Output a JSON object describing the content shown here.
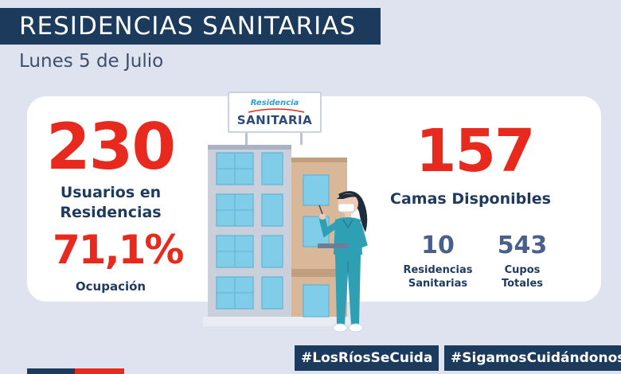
{
  "header": {
    "title": "RESIDENCIAS SANITARIAS",
    "date": "Lunes 5 de Julio"
  },
  "stats": {
    "usuarios_value": "230",
    "usuarios_label_line1": "Usuarios en",
    "usuarios_label_line2": "Residencias",
    "ocupacion_value": "71,1%",
    "ocupacion_label": "Ocupación",
    "camas_value": "157",
    "camas_label": "Camas Disponibles",
    "residencias_value": "10",
    "residencias_label_line1": "Residencias",
    "residencias_label_line2": "Sanitarias",
    "cupos_value": "543",
    "cupos_label_line1": "Cupos",
    "cupos_label_line2": "Totales"
  },
  "sign": {
    "top": "Residencia",
    "main": "SANITARIA"
  },
  "hashtags": {
    "left": "#LosRíosSeCuida",
    "right": "#SigamosCuidándonos"
  },
  "colors": {
    "navy": "#1c3a5c",
    "red": "#e8291d",
    "background": "#dfe3ef",
    "slate": "#4a5f8a",
    "building_window": "#7fcde8",
    "nurse_scrubs": "#2f9fb3"
  },
  "icons": [
    "building-illustration",
    "nurse-illustration",
    "residencia-sanitaria-sign"
  ]
}
